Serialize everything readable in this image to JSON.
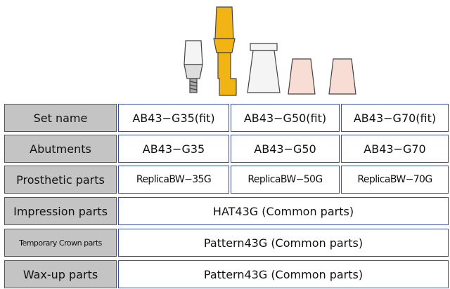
{
  "table": {
    "rows": [
      [
        "Set name",
        "AB43−G35(fit)",
        "AB43−G50(fit)",
        "AB43−G70(fit)"
      ],
      [
        "Abutments",
        "AB43−G35",
        "AB43−G50",
        "AB43−G70"
      ],
      [
        "Prosthetic parts",
        "ReplicaBW−35G",
        "ReplicaBW−50G",
        "ReplicaBW−70G"
      ],
      [
        "Impression parts",
        "HAT43G (Common parts)"
      ],
      [
        "Temporary Crown parts",
        "Pattern43G (Common parts)"
      ],
      [
        "Wax-up parts",
        "Pattern43G (Common parts)"
      ]
    ]
  }
}
